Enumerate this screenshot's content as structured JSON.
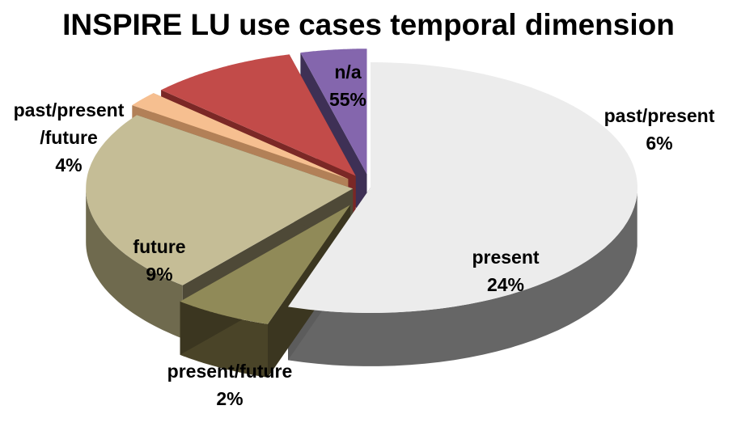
{
  "chart_data": {
    "type": "pie",
    "title": "INSPIRE LU use cases temporal dimension",
    "three_d": true,
    "exploded": true,
    "slices": [
      {
        "name": "n/a",
        "value": 55,
        "label_lines": [
          "n/a",
          "55%"
        ],
        "colors": {
          "top": "#ececec",
          "side": "#5c5c5c",
          "outer": "#666666"
        }
      },
      {
        "name": "past/present",
        "value": 6,
        "label_lines": [
          "past/present",
          "6%"
        ],
        "colors": {
          "top": "#908a58",
          "side": "#3b3620",
          "outer": "#4a4428"
        }
      },
      {
        "name": "present",
        "value": 24,
        "label_lines": [
          "present",
          "24%"
        ],
        "colors": {
          "top": "#c5bd96",
          "side": "#4e4937",
          "outer": "#6f6a4e"
        }
      },
      {
        "name": "present/future",
        "value": 2,
        "label_lines": [
          "present/future",
          "2%"
        ],
        "colors": {
          "top": "#f6bf90",
          "side": "#b28057",
          "outer": "#c89a72"
        }
      },
      {
        "name": "future",
        "value": 9,
        "label_lines": [
          "future",
          "9%"
        ],
        "colors": {
          "top": "#c24b49",
          "side": "#7b2826",
          "outer": "#9a3734"
        }
      },
      {
        "name": "past/present/future",
        "value": 4,
        "label_lines": [
          "past/present",
          "/future",
          "4%"
        ],
        "colors": {
          "top": "#8466ad",
          "side": "#3e3055",
          "outer": "#564275"
        }
      }
    ]
  }
}
